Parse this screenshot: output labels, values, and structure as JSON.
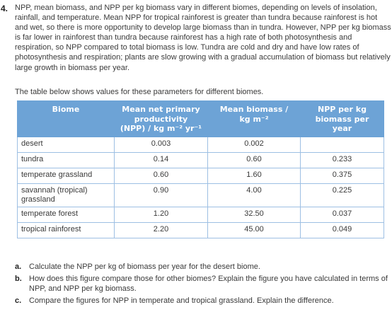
{
  "question_number": "4.",
  "intro_text": "NPP, mean biomass, and NPP per kg biomass vary in different biomes, depending on levels of insolation, rainfall, and temperature. Mean NPP for tropical rainforest is greater than tundra because rainforest is hot and wet, so there is more opportunity to develop large biomass than in tundra. However, NPP per kg biomass is far lower in rainforest than tundra because rainforest has a high rate of both photosynthesis and respiration, so NPP compared to total biomass is low. Tundra are cold and dry and have low rates of photosynthesis and respiration; plants are slow growing with a gradual accumulation of biomass but relatively large growth in biomass per year.",
  "table_intro": "The table below shows values for these parameters for different biomes.",
  "table": {
    "headers": {
      "biome": "Biome",
      "npp_line1": "Mean net primary",
      "npp_line2": "productivity",
      "npp_line3": "(NPP) / kg m⁻² yr⁻¹",
      "biomass_line1": "Mean biomass /",
      "biomass_line2": "kg m⁻²",
      "npp_per_kg_line1": "NPP per kg",
      "npp_per_kg_line2": "biomass per",
      "npp_per_kg_line3": "year"
    },
    "rows": [
      {
        "biome": "desert",
        "npp": "0.003",
        "biomass": "0.002",
        "npp_per_kg": ""
      },
      {
        "biome": "tundra",
        "npp": "0.14",
        "biomass": "0.60",
        "npp_per_kg": "0.233"
      },
      {
        "biome": "temperate grassland",
        "npp": "0.60",
        "biomass": "1.60",
        "npp_per_kg": "0.375"
      },
      {
        "biome": "savannah (tropical) grassland",
        "npp": "0.90",
        "biomass": "4.00",
        "npp_per_kg": "0.225"
      },
      {
        "biome": "temperate forest",
        "npp": "1.20",
        "biomass": "32.50",
        "npp_per_kg": "0.037"
      },
      {
        "biome": "tropical rainforest",
        "npp": "2.20",
        "biomass": "45.00",
        "npp_per_kg": "0.049"
      }
    ]
  },
  "questions": [
    {
      "letter": "a.",
      "text": "Calculate the NPP per kg of biomass per year for the desert biome."
    },
    {
      "letter": "b.",
      "text": "How does this figure compare those for other biomes? Explain the figure you have calculated in terms of NPP, and NPP per kg biomass."
    },
    {
      "letter": "c.",
      "text": "Compare the figures for NPP in temperate and tropical grassland. Explain the difference."
    }
  ],
  "colors": {
    "header_bg": "#6da3d6",
    "border": "#9dbfe3",
    "text": "#3a3a3a"
  }
}
